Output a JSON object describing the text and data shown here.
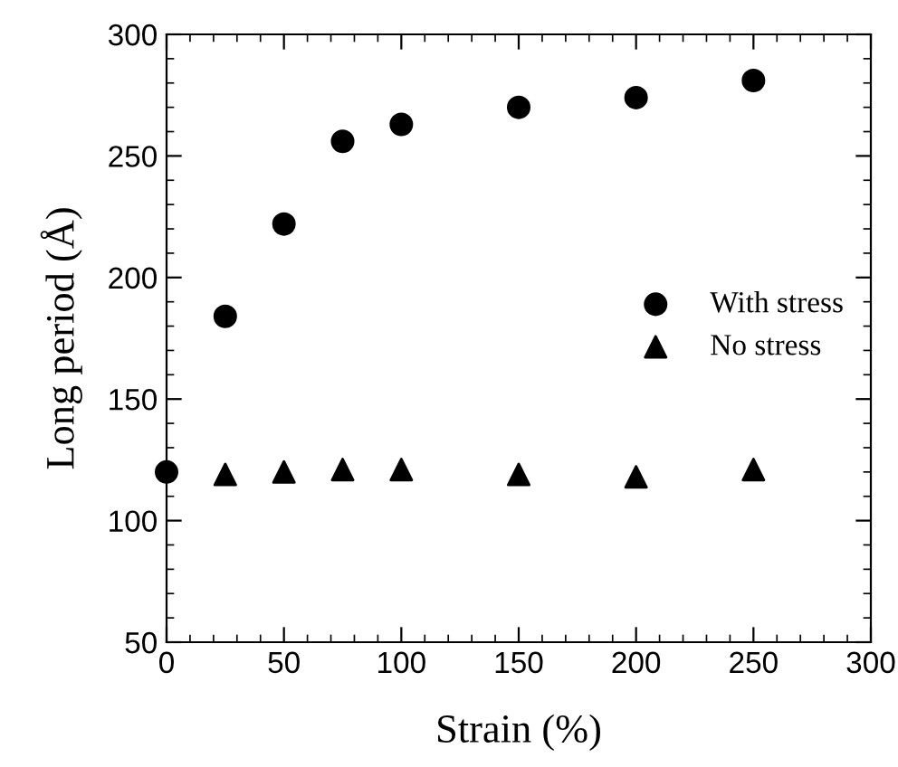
{
  "chart_data": {
    "type": "scatter",
    "xlabel": "Strain (%)",
    "ylabel": "Long period (Å)",
    "x": [
      0,
      25,
      50,
      75,
      100,
      150,
      200,
      250
    ],
    "series": [
      {
        "name": "With stress",
        "color": "#000000",
        "marker": "circle",
        "values": [
          120,
          184,
          222,
          256,
          263,
          270,
          274,
          281
        ]
      },
      {
        "name": "No stress",
        "color": "#000000",
        "marker": "triangle",
        "values": [
          null,
          119,
          120,
          121,
          121,
          119,
          118,
          121
        ]
      }
    ],
    "xlim": [
      0,
      300
    ],
    "xticks": [
      0,
      50,
      100,
      150,
      200,
      250,
      300
    ],
    "ylim": [
      50,
      300
    ],
    "yticks": [
      50,
      100,
      150,
      200,
      250,
      300
    ],
    "grid": false,
    "legend": "right"
  }
}
